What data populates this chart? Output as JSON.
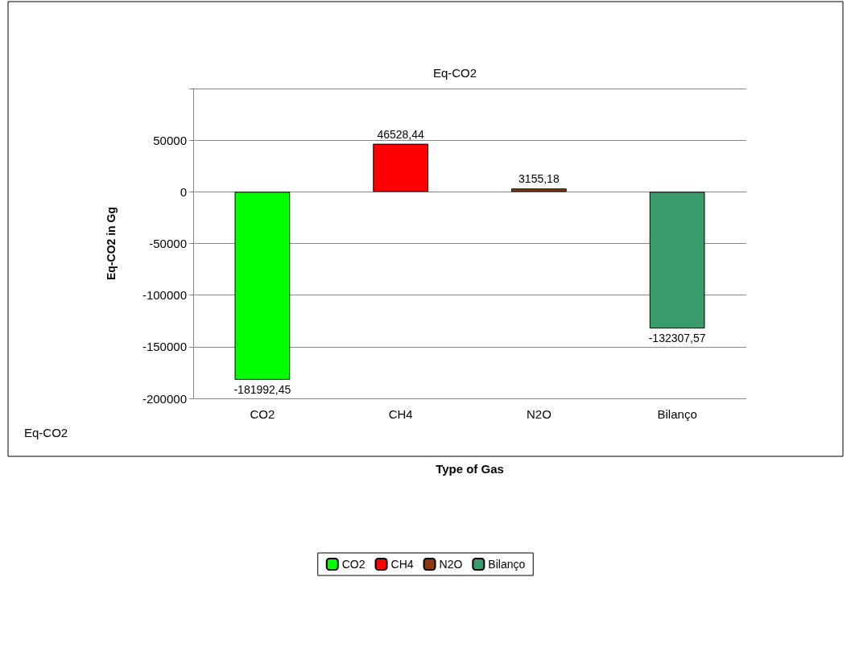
{
  "chart_data": {
    "type": "bar",
    "title": "Eq-CO2",
    "xlabel": "Type of Gas",
    "ylabel": "Eq-CO2 in Gg",
    "categories": [
      "CO2",
      "CH4",
      "N2O",
      "Bilanço"
    ],
    "series": [
      {
        "name": "CO2",
        "color": "#00ff00",
        "values": [
          -181992.45,
          null,
          null,
          null
        ],
        "value_labels": [
          "-181992,45",
          null,
          null,
          null
        ]
      },
      {
        "name": "CH4",
        "color": "#ff0000",
        "values": [
          null,
          46528.44,
          null,
          null
        ],
        "value_labels": [
          null,
          "46528,44",
          null,
          null
        ]
      },
      {
        "name": "N2O",
        "color": "#8b3a0f",
        "values": [
          null,
          null,
          3155.18,
          null
        ],
        "value_labels": [
          null,
          null,
          "3155,18",
          null
        ]
      },
      {
        "name": "Bilanço",
        "color": "#3a9a6a",
        "values": [
          null,
          null,
          null,
          -132307.57
        ],
        "value_labels": [
          null,
          null,
          null,
          "-132307,57"
        ]
      }
    ],
    "stacked": true,
    "ylim": [
      -200000,
      100000
    ],
    "yticks": [
      -200000,
      -150000,
      -100000,
      -50000,
      0,
      50000,
      {
        "value": 100000,
        "label": null
      }
    ],
    "grid": "y",
    "legend": "bottom",
    "annotations": [
      "Eq-CO2"
    ]
  }
}
